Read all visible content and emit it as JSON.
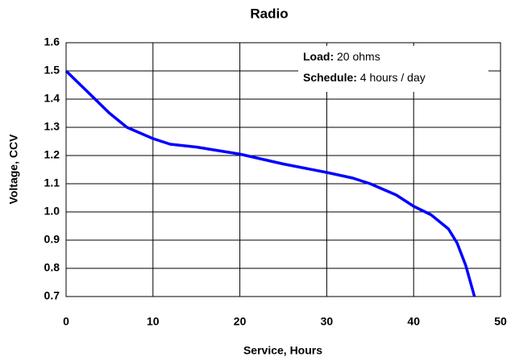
{
  "chart_data": {
    "type": "line",
    "title": "Radio",
    "x_label": "Service, Hours",
    "y_label": "Voltage, CCV",
    "annotations": [
      {
        "label": "Load:",
        "text": "20 ohms"
      },
      {
        "label": "Schedule:",
        "text": "4 hours / day"
      }
    ],
    "x": [
      0,
      2,
      3,
      5,
      7,
      10,
      12,
      15,
      20,
      25,
      30,
      33,
      35,
      38,
      40,
      42,
      44,
      45,
      46,
      47
    ],
    "series": [
      {
        "color": "#0000ff",
        "values": [
          1.5,
          1.44,
          1.41,
          1.35,
          1.3,
          1.26,
          1.24,
          1.23,
          1.205,
          1.17,
          1.14,
          1.12,
          1.1,
          1.06,
          1.02,
          0.99,
          0.94,
          0.89,
          0.81,
          0.7
        ]
      }
    ],
    "xlim": [
      0,
      50
    ],
    "xticks": [
      0,
      10,
      20,
      30,
      40,
      50
    ],
    "ylim": [
      0.7,
      1.6
    ],
    "yticks": [
      0.7,
      0.8,
      0.9,
      {
        "value": 1,
        "label": "1.0"
      },
      1.1,
      1.2,
      1.3,
      1.4,
      1.5,
      1.6
    ],
    "grid": true
  }
}
